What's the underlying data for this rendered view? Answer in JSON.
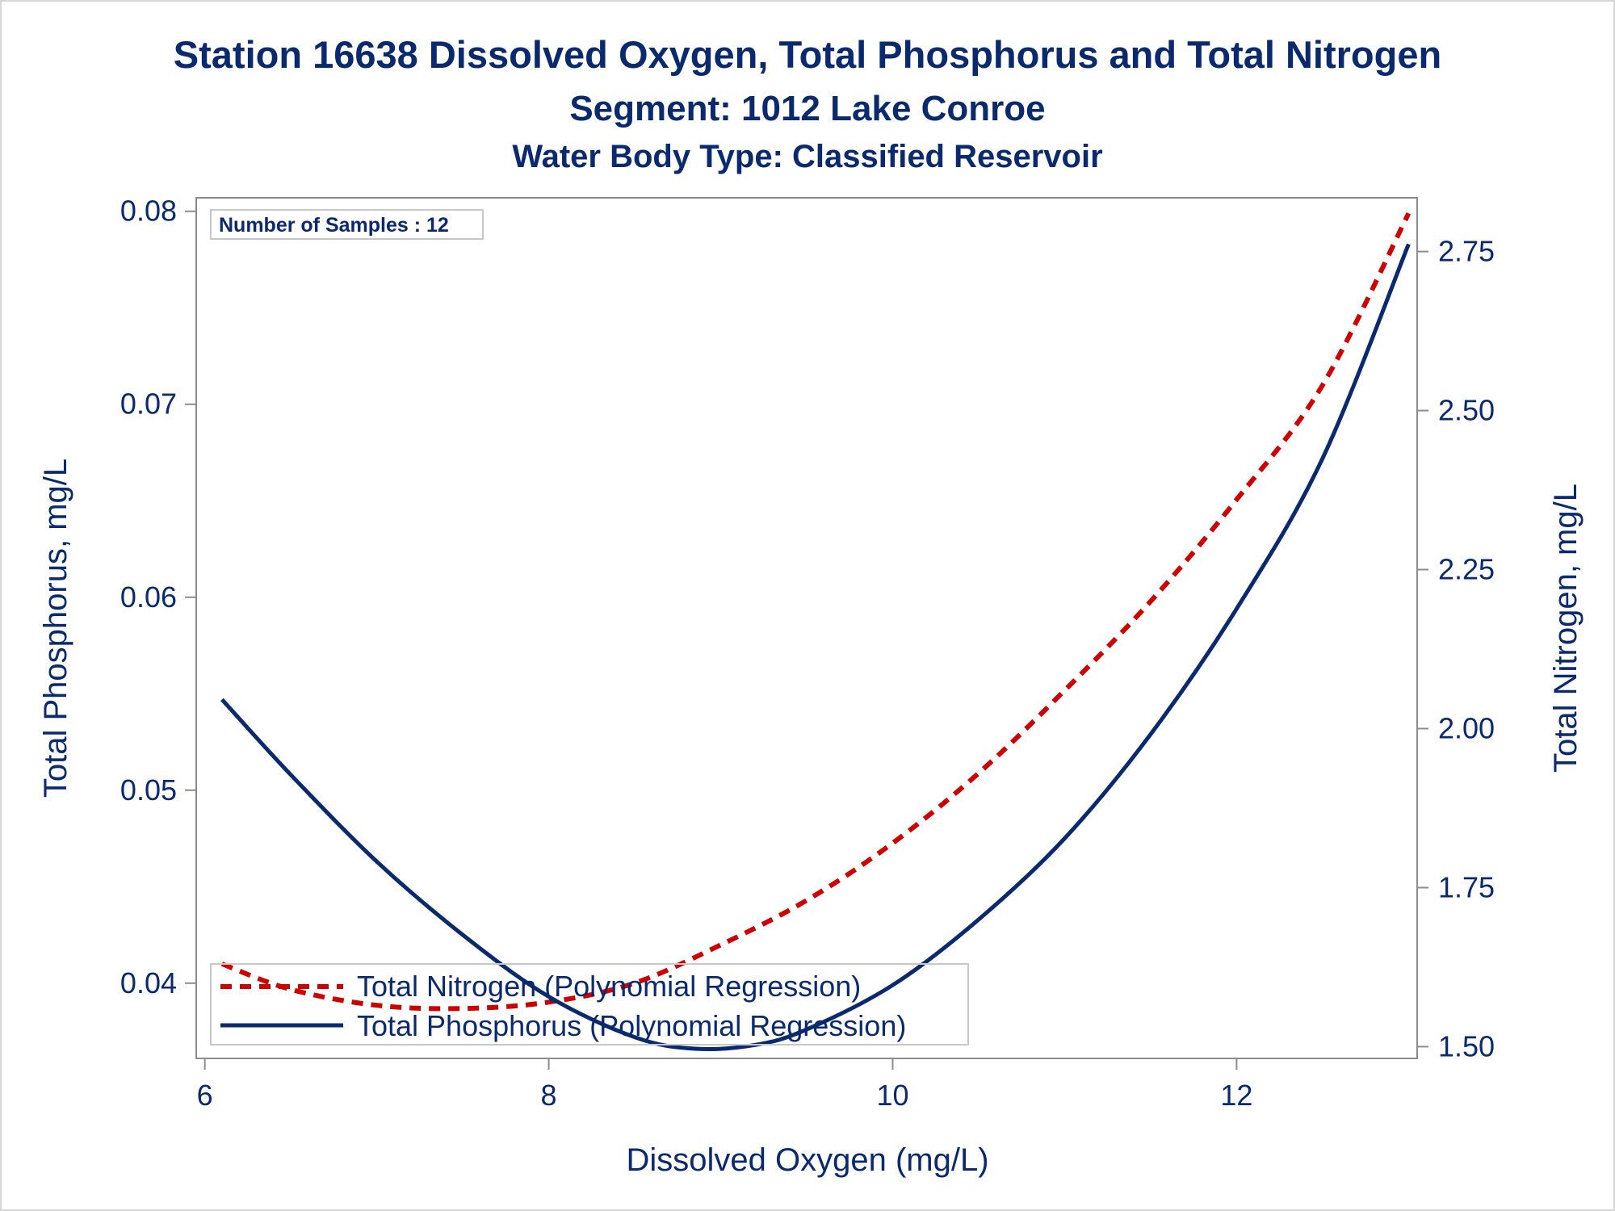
{
  "titles": {
    "title": "Station 16638  Dissolved Oxygen, Total Phosphorus and Total Nitrogen",
    "subtitle": "Segment: 1012  Lake Conroe",
    "subtitle2": "Water Body Type: Classified Reservoir"
  },
  "annotation": {
    "text": "Number of Samples : 12"
  },
  "colors": {
    "phosphorus": "#0b2a6e",
    "nitrogen": "#cc0000",
    "axis": "#8c8c8c",
    "text": "#0b2a6e"
  },
  "chart_data": {
    "type": "line",
    "xlabel": "Dissolved Oxygen (mg/L)",
    "ylabel": "Total Phosphorus, mg/L",
    "y2label": "Total Nitrogen, mg/L",
    "xlim": [
      5.95,
      13.05
    ],
    "ylim": [
      0.0361,
      0.0807
    ],
    "y2lim": [
      1.4815,
      2.8345
    ],
    "xticks": [
      6,
      8,
      10,
      12
    ],
    "xtick_labels": [
      "6",
      "8",
      "10",
      "12"
    ],
    "yticks": [
      0.04,
      0.05,
      0.06,
      0.07,
      0.08
    ],
    "ytick_labels": [
      "0.04",
      "0.05",
      "0.06",
      "0.07",
      "0.08"
    ],
    "y2ticks": [
      1.5,
      1.75,
      2.0,
      2.25,
      2.5,
      2.75
    ],
    "y2tick_labels": [
      "1.50",
      "1.75",
      "2.00",
      "2.25",
      "2.50",
      "2.75"
    ],
    "grid": false,
    "legend_position": "bottom-left",
    "series": [
      {
        "name": "Total Nitrogen (Polynomial Regression)",
        "axis": "right",
        "style": "dashed",
        "x": [
          6.1,
          6.5,
          7.0,
          7.5,
          8.0,
          8.5,
          9.0,
          9.5,
          10.0,
          10.5,
          11.0,
          11.5,
          12.0,
          12.5,
          13.0
        ],
        "y": [
          1.63,
          1.59,
          1.565,
          1.56,
          1.57,
          1.6,
          1.66,
          1.73,
          1.82,
          1.93,
          2.06,
          2.2,
          2.36,
          2.54,
          2.81
        ]
      },
      {
        "name": "Total Phosphorus (Polynomial Regression)",
        "axis": "left",
        "style": "solid",
        "x": [
          6.1,
          6.5,
          7.0,
          7.5,
          8.0,
          8.5,
          8.85,
          9.2,
          9.5,
          10.0,
          10.5,
          11.0,
          11.5,
          12.0,
          12.5,
          13.0
        ],
        "y": [
          0.0547,
          0.0508,
          0.0463,
          0.0425,
          0.0393,
          0.0372,
          0.0366,
          0.0368,
          0.0376,
          0.0399,
          0.0433,
          0.0475,
          0.0529,
          0.0594,
          0.0672,
          0.0783
        ]
      }
    ]
  }
}
